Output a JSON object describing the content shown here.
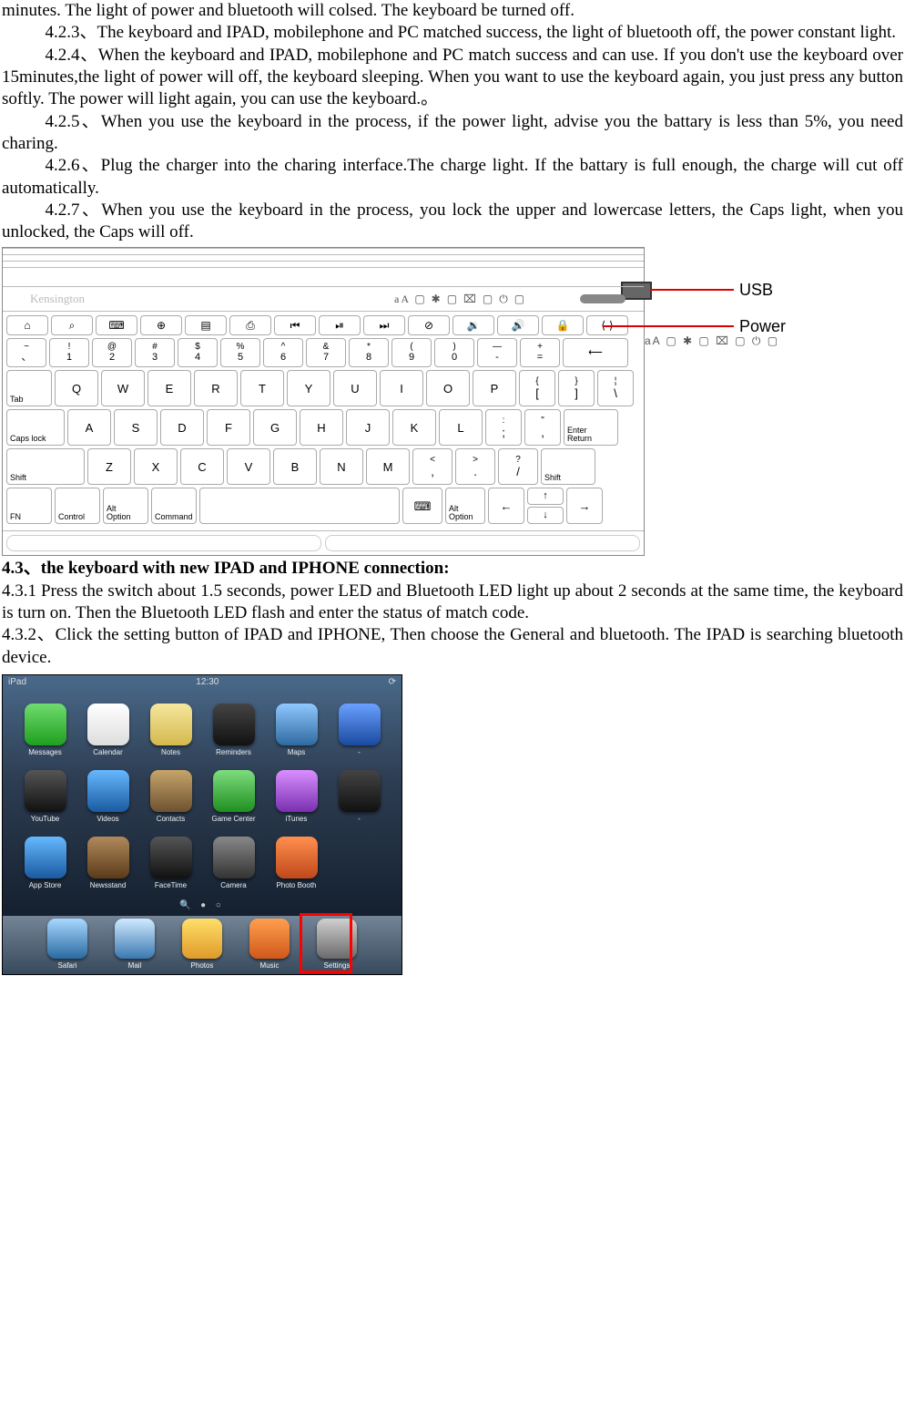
{
  "text": {
    "p1": "minutes. The light of power and bluetooth will colsed. The keyboard be turned off.",
    "p2": "4.2.3、The keyboard and IPAD, mobilephone and PC matched success, the light of bluetooth off, the power constant light.",
    "p3": "4.2.4、When the keyboard and IPAD, mobilephone and PC match success and can use. If you don't use the keyboard over 15minutes,the light of power will off, the keyboard sleeping. When you want to use the keyboard again, you just press any button softly. The power will light again, you can use the keyboard.。",
    "p4": "4.2.5、When you use the keyboard in the process, if the power light, advise you the battary is less than 5%, you need charing.",
    "p5": "4.2.6、Plug the charger into the charing interface.The charge light. If the battary is full enough, the charge will cut off automatically.",
    "p6": "4.2.7、When you use the keyboard in the process, you lock the upper and lowercase letters, the Caps light, when you unlocked, the Caps will off.",
    "h43": "4.3、the keyboard with new IPAD and IPHONE connection:",
    "p431": "4.3.1 Press the switch about 1.5 seconds, power LED and Bluetooth LED light up about 2 seconds at the same time, the keyboard is turn on. Then the Bluetooth LED flash and enter the status of match code.",
    "p432": "4.3.2、Click the setting button of IPAD and IPHONE, Then choose the General and bluetooth. The IPAD is searching bluetooth device."
  },
  "kbd": {
    "brand": "Kensington",
    "indicators": "aA ▢ ✱ ▢ ⌧ ▢ ⏻ ▢",
    "usb_label": "USB",
    "power_label": "Power",
    "fn_row": [
      "⌂",
      "⌕",
      "⌨",
      "⊕",
      "▤",
      "⎙",
      "⏮",
      "⏯",
      "⏭",
      "⊘",
      "🔉",
      "🔊",
      "🔒",
      "⟨·⟩"
    ],
    "num_row": [
      [
        "~",
        "、"
      ],
      [
        "!",
        "1"
      ],
      [
        "@",
        "2"
      ],
      [
        "#",
        "3"
      ],
      [
        "$",
        "4"
      ],
      [
        "%",
        "5"
      ],
      [
        "^",
        "6"
      ],
      [
        "&",
        "7"
      ],
      [
        "*",
        "8"
      ],
      [
        "(",
        "9"
      ],
      [
        ")",
        "0"
      ],
      [
        "—",
        "-"
      ],
      [
        "+",
        "="
      ]
    ],
    "backspace": "⟵",
    "row_q": [
      "Q",
      "W",
      "E",
      "R",
      "T",
      "Y",
      "U",
      "I",
      "O",
      "P"
    ],
    "brackets": [
      [
        "{",
        "["
      ],
      [
        "}",
        "]"
      ],
      [
        "¦",
        "\\"
      ]
    ],
    "row_a": [
      "A",
      "S",
      "D",
      "F",
      "G",
      "H",
      "J",
      "K",
      "L"
    ],
    "row_a_end": [
      [
        ":",
        ";"
      ],
      [
        "\"",
        ","
      ]
    ],
    "enter_top": "Enter",
    "enter_bot": "Return",
    "row_z": [
      "Z",
      "X",
      "C",
      "V",
      "B",
      "N",
      "M"
    ],
    "row_z_end": [
      [
        "<",
        ","
      ],
      [
        ">",
        "."
      ],
      [
        "?",
        "/"
      ]
    ],
    "tab": "Tab",
    "caps": "Caps lock",
    "shift": "Shift",
    "bottom": [
      "FN",
      "Control",
      "Alt\nOption",
      "Command"
    ],
    "bottom_right": [
      "⌨",
      "Alt\nOption"
    ],
    "arrows": {
      "left": "←",
      "up": "↑",
      "down": "↓",
      "right": "→"
    }
  },
  "ipad": {
    "status_left": "iPad",
    "status_center": "12:30",
    "status_right": "⟳",
    "apps_row1": [
      {
        "label": "Messages",
        "bg": "linear-gradient(#6fdc6f,#1f9f1f)"
      },
      {
        "label": "Calendar",
        "bg": "linear-gradient(#fff,#ddd)"
      },
      {
        "label": "Notes",
        "bg": "linear-gradient(#f5e79e,#d4b94e)"
      },
      {
        "label": "Reminders",
        "bg": "linear-gradient(#444,#111)"
      },
      {
        "label": "Maps",
        "bg": "linear-gradient(#8fc8ff,#2e6aa0)"
      },
      {
        "label": "-",
        "bg": "linear-gradient(#6aa0ff,#1a4aa0)"
      }
    ],
    "apps_row2": [
      {
        "label": "YouTube",
        "bg": "linear-gradient(#555,#111)"
      },
      {
        "label": "Videos",
        "bg": "linear-gradient(#66b8ff,#1a5aa0)"
      },
      {
        "label": "Contacts",
        "bg": "linear-gradient(#c7a46a,#6d5230)"
      },
      {
        "label": "Game Center",
        "bg": "linear-gradient(#7edc7e,#1f8f1f)"
      },
      {
        "label": "iTunes",
        "bg": "linear-gradient(#d98fff,#7a2fb0)"
      },
      {
        "label": "-",
        "bg": "linear-gradient(#444,#111)"
      }
    ],
    "apps_row3": [
      {
        "label": "App Store",
        "bg": "linear-gradient(#66b8ff,#1a5aa0)"
      },
      {
        "label": "Newsstand",
        "bg": "linear-gradient(#b08a5a,#5a3a1a)"
      },
      {
        "label": "FaceTime",
        "bg": "linear-gradient(#555,#111)"
      },
      {
        "label": "Camera",
        "bg": "linear-gradient(#888,#333)"
      },
      {
        "label": "Photo Booth",
        "bg": "linear-gradient(#ff8f4f,#c0481a)"
      }
    ],
    "dock": [
      {
        "label": "Safari",
        "bg": "linear-gradient(#a8d8ff,#2a6aa0)"
      },
      {
        "label": "Mail",
        "bg": "linear-gradient(#cfeaff,#3a78b0)"
      },
      {
        "label": "Photos",
        "bg": "linear-gradient(#ffdf6a,#e09a2a)"
      },
      {
        "label": "Music",
        "bg": "linear-gradient(#ff9f4f,#d0581a)"
      },
      {
        "label": "Settings",
        "bg": "linear-gradient(#cfcfcf,#6a6a6a)"
      }
    ]
  }
}
